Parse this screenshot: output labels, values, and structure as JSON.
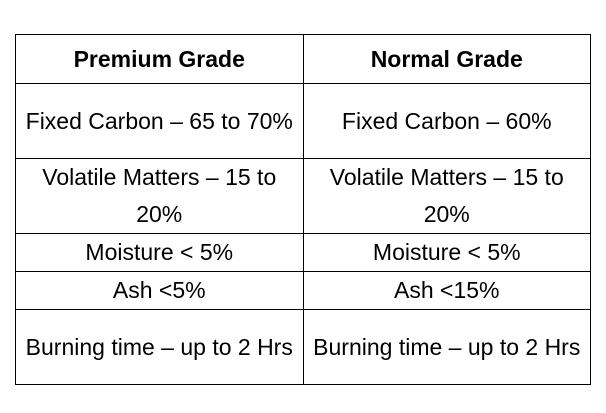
{
  "table": {
    "header": [
      "Premium Grade",
      "Normal Grade"
    ],
    "rows": [
      [
        "Fixed Carbon – 65 to 70%",
        "Fixed Carbon – 60%"
      ],
      [
        "Volatile Matters – 15 to 20%",
        "Volatile Matters – 15 to 20%"
      ],
      [
        "Moisture < 5%",
        "Moisture < 5%"
      ],
      [
        "Ash <5%",
        "Ash <15%"
      ],
      [
        "Burning time – up to 2 Hrs",
        "Burning time – up to 2 Hrs"
      ]
    ]
  }
}
